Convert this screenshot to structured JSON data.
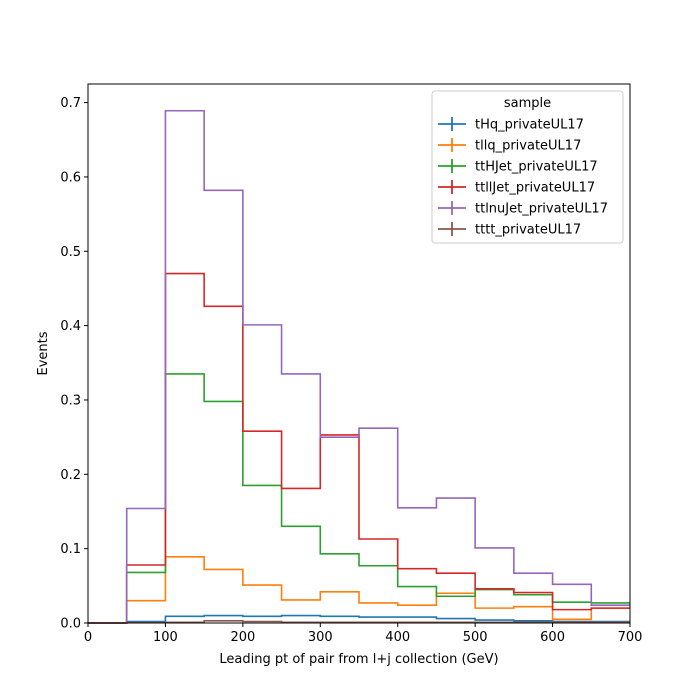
{
  "chart_data": {
    "type": "histogram-step",
    "xlabel": "Leading pt of pair from l+j collection (GeV)",
    "ylabel": "Events",
    "xlim": [
      0,
      700
    ],
    "ylim": [
      0,
      0.725
    ],
    "xticks": [
      0,
      100,
      200,
      300,
      400,
      500,
      600,
      700
    ],
    "yticks": [
      0.0,
      0.1,
      0.2,
      0.3,
      0.4,
      0.5,
      0.6,
      0.7
    ],
    "bin_edges": [
      0,
      50,
      100,
      150,
      200,
      250,
      300,
      350,
      400,
      450,
      500,
      550,
      600,
      650,
      700
    ],
    "legend": {
      "title": "sample",
      "placement": "top-right"
    },
    "grid": false,
    "series": [
      {
        "name": "tHq_privateUL17",
        "color": "#1f77b4",
        "values": [
          0.0,
          0.002,
          0.009,
          0.01,
          0.009,
          0.01,
          0.009,
          0.008,
          0.008,
          0.006,
          0.004,
          0.003,
          0.002,
          0.002
        ]
      },
      {
        "name": "tllq_privateUL17",
        "color": "#ff7f0e",
        "values": [
          0.0,
          0.03,
          0.089,
          0.072,
          0.051,
          0.031,
          0.042,
          0.027,
          0.024,
          0.04,
          0.02,
          0.022,
          0.005,
          0.02
        ]
      },
      {
        "name": "ttHJet_privateUL17",
        "color": "#2ca02c",
        "values": [
          0.0,
          0.068,
          0.335,
          0.298,
          0.185,
          0.13,
          0.093,
          0.077,
          0.049,
          0.036,
          0.045,
          0.038,
          0.028,
          0.027
        ]
      },
      {
        "name": "ttllJet_privateUL17",
        "color": "#d62728",
        "values": [
          0.0,
          0.078,
          0.47,
          0.426,
          0.258,
          0.181,
          0.253,
          0.113,
          0.073,
          0.067,
          0.046,
          0.041,
          0.018,
          0.02
        ]
      },
      {
        "name": "ttlnuJet_privateUL17",
        "color": "#9467bd",
        "values": [
          0.0,
          0.154,
          0.689,
          0.582,
          0.401,
          0.335,
          0.25,
          0.262,
          0.155,
          0.168,
          0.101,
          0.067,
          0.052,
          0.024
        ]
      },
      {
        "name": "tttt_privateUL17",
        "color": "#8c564b",
        "values": [
          0.0,
          0.0005,
          0.001,
          0.003,
          0.002,
          0.001,
          0.001,
          0.001,
          0.001,
          0.001,
          0.001,
          0.001,
          0.001,
          0.001
        ]
      }
    ]
  }
}
